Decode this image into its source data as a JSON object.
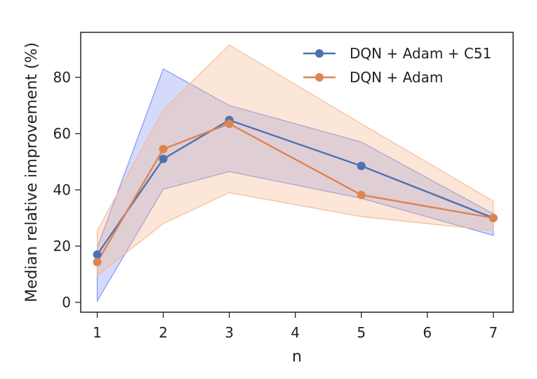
{
  "chart_data": {
    "type": "line",
    "xlabel": "n",
    "ylabel": "Median relative improvement (%)",
    "x_ticks": [
      1,
      2,
      3,
      4,
      5,
      6,
      7
    ],
    "y_ticks": [
      0,
      20,
      40,
      60,
      80
    ],
    "xlim": [
      0.75,
      7.3
    ],
    "ylim": [
      -3.5,
      96
    ],
    "grid": false,
    "legend_position": "top-right",
    "series": [
      {
        "name": "DQN + Adam + C51",
        "color": "#4C72B0",
        "band_color": "#7b8cf0",
        "x": [
          1,
          2,
          3,
          5,
          7
        ],
        "y": [
          17,
          51,
          64.8,
          48.5,
          30
        ],
        "band_lower": [
          0.5,
          40.2,
          46.5,
          37,
          23.8
        ],
        "band_upper": [
          19.5,
          83,
          70,
          57,
          31.5
        ]
      },
      {
        "name": "DQN + Adam",
        "color": "#DD8452",
        "band_color": "#f5b78f",
        "x": [
          1,
          2,
          3,
          5,
          7
        ],
        "y": [
          14.3,
          54.5,
          63.5,
          38.2,
          30
        ],
        "band_lower": [
          9.5,
          28,
          39,
          30.5,
          25.5
        ],
        "band_upper": [
          25.5,
          68.5,
          91.5,
          63.5,
          36
        ]
      }
    ]
  }
}
